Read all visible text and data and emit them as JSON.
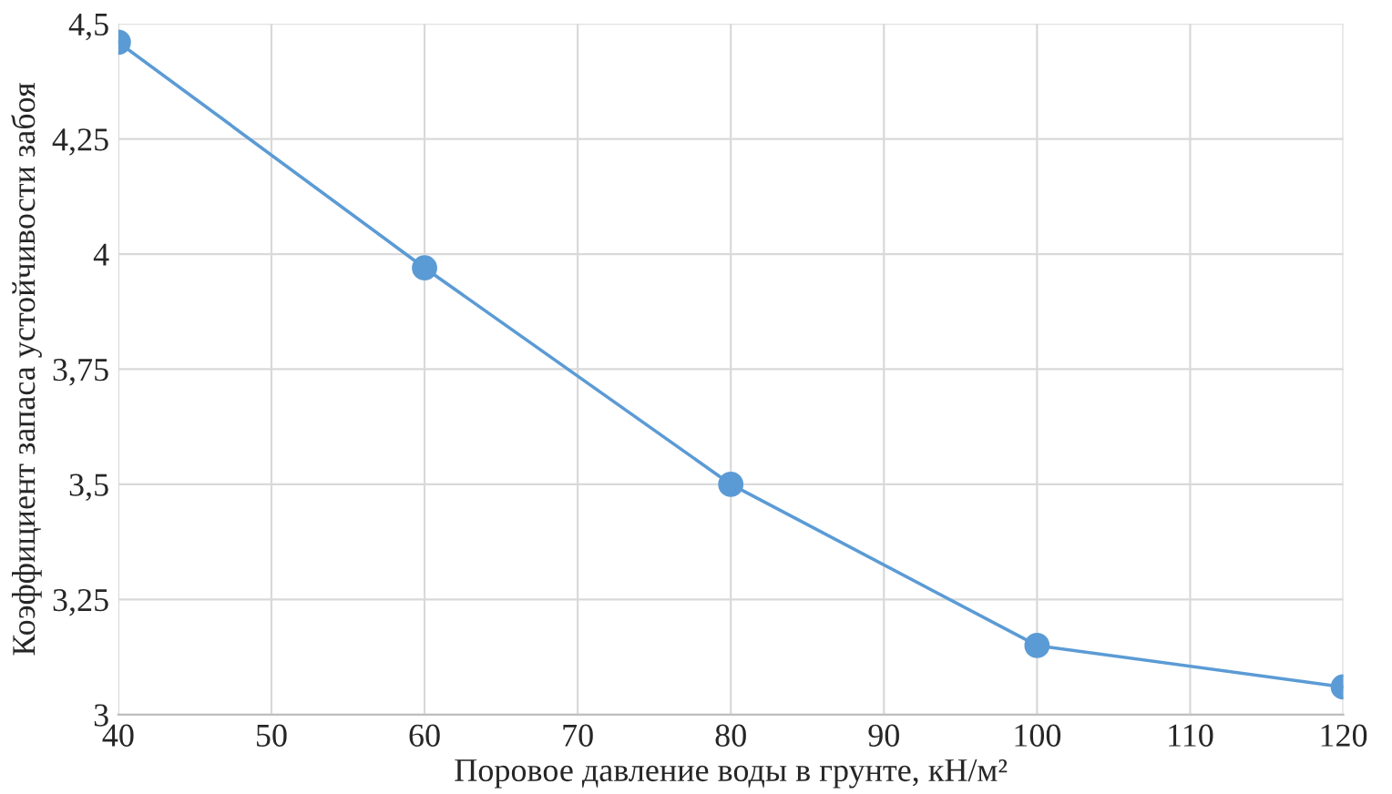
{
  "chart_data": {
    "type": "line",
    "xlabel": "Поровое давление воды в грунте, кН/м²",
    "ylabel": "Коэффициент запаса устойчивости забоя",
    "x": [
      40,
      60,
      80,
      100,
      120
    ],
    "series": [
      {
        "color": "#5b9bd5",
        "values": [
          4.46,
          3.97,
          3.5,
          3.15,
          3.06
        ]
      }
    ],
    "xlim": [
      40,
      120
    ],
    "xticks": [
      40,
      50,
      60,
      70,
      80,
      90,
      100,
      110,
      120
    ],
    "ylim": [
      3,
      4.5
    ],
    "yticks": [
      {
        "value": 3,
        "label": "3"
      },
      {
        "value": 3.25,
        "label": "3,25"
      },
      {
        "value": 3.5,
        "label": "3,5"
      },
      {
        "value": 3.75,
        "label": "3,75"
      },
      {
        "value": 4,
        "label": "4"
      },
      {
        "value": 4.25,
        "label": "4,25"
      },
      {
        "value": 4.5,
        "label": "4,5"
      }
    ],
    "grid": true,
    "marker": "circle",
    "line_style": "solid",
    "legend": false
  }
}
